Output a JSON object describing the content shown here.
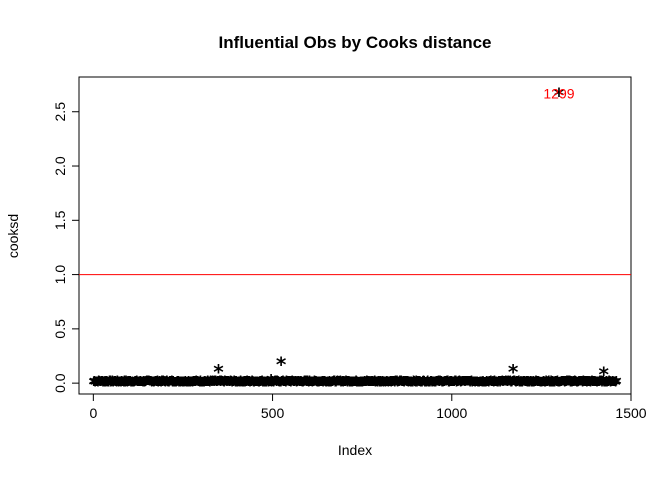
{
  "chart_data": {
    "type": "scatter",
    "title": "Influential Obs by Cooks distance",
    "xlabel": "Index",
    "ylabel": "cooksd",
    "xlim": [
      -40,
      1500
    ],
    "ylim": [
      -0.1,
      2.82
    ],
    "x_ticks": [
      0,
      500,
      1000,
      1500
    ],
    "y_ticks": [
      0.0,
      0.5,
      1.0,
      1.5,
      2.0,
      2.5
    ],
    "x_tick_labels": [
      "0",
      "500",
      "1000",
      "1500"
    ],
    "y_tick_labels": [
      "0.0",
      "0.5",
      "1.0",
      "1.5",
      "2.0",
      "2.5"
    ],
    "grid": false,
    "marker": "*",
    "n_points": 1460,
    "baseline_range": [
      0.0,
      0.015
    ],
    "notable_points": [
      {
        "x": 349,
        "y": 0.12
      },
      {
        "x": 524,
        "y": 0.19
      },
      {
        "x": 1171,
        "y": 0.12
      },
      {
        "x": 1424,
        "y": 0.1
      },
      {
        "x": 496,
        "y": 0.03
      },
      {
        "x": 1299,
        "y": 2.67
      }
    ],
    "reference_line": {
      "y": 1.0,
      "color": "#ff0000"
    },
    "point_labels": [
      {
        "text": "1299",
        "x": 1299,
        "y": 2.67,
        "color": "#ff0000"
      }
    ]
  }
}
